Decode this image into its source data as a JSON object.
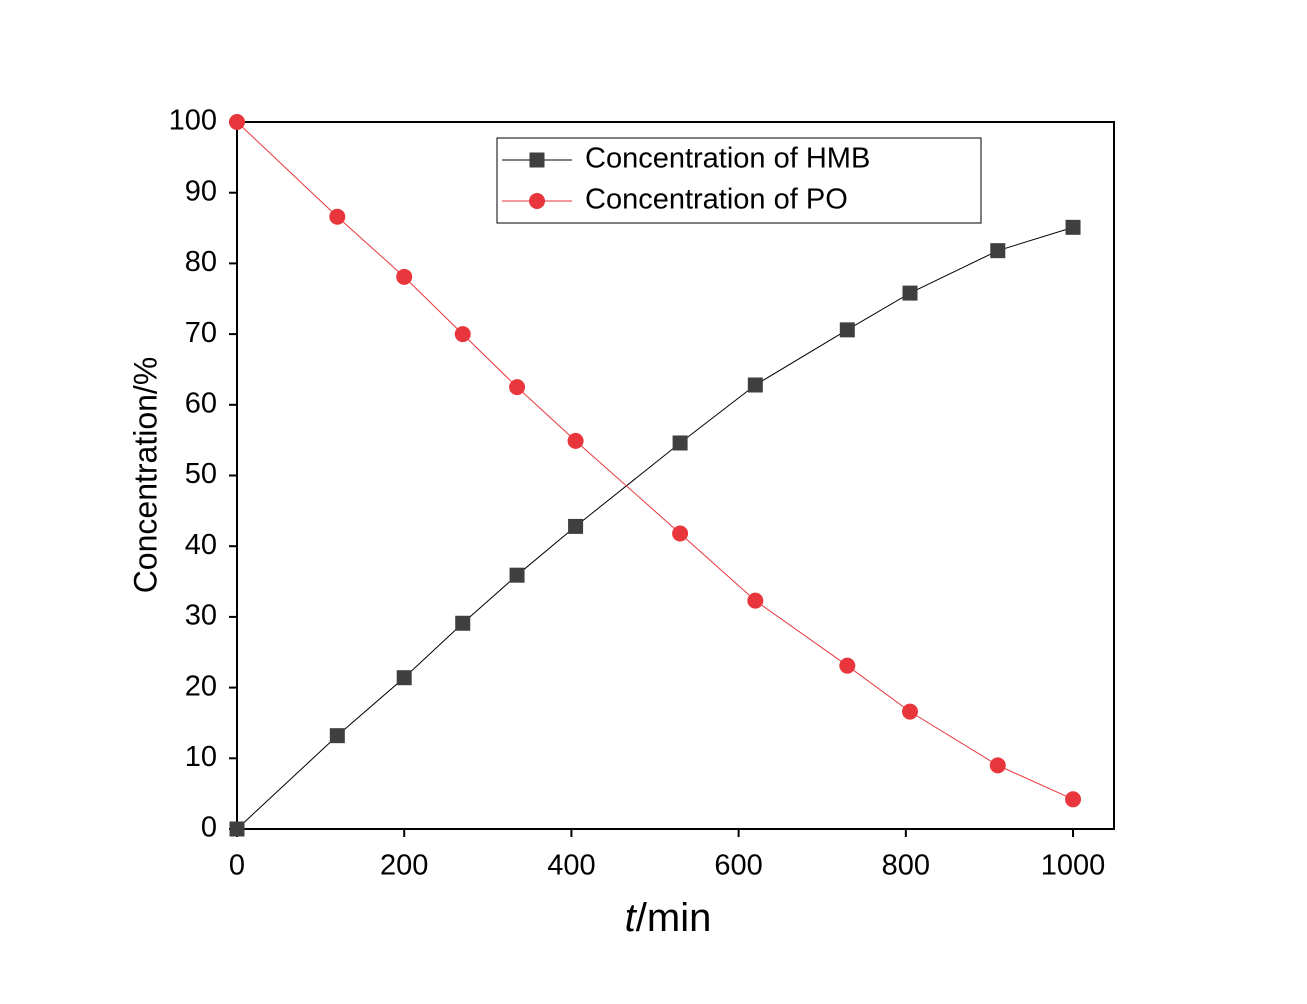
{
  "chart_data": {
    "type": "line",
    "x_label": "t/min",
    "y_label": "Concentration/%",
    "x": [
      0,
      120,
      200,
      270,
      335,
      405,
      530,
      620,
      730,
      805,
      910,
      1000
    ],
    "series": [
      {
        "name": "Concentration of HMB",
        "color": "#3f3f3f",
        "line_color": "#000000",
        "marker": "square",
        "values": [
          0,
          13.2,
          21.4,
          29.1,
          35.9,
          42.8,
          54.6,
          62.8,
          70.6,
          75.8,
          81.8,
          85.1
        ]
      },
      {
        "name": "Concentration of PO",
        "color": "#e8363c",
        "line_color": "#e8363c",
        "marker": "circle",
        "values": [
          100,
          86.6,
          78.1,
          70.0,
          62.5,
          54.9,
          41.8,
          32.3,
          23.1,
          16.6,
          9.0,
          4.2
        ]
      }
    ],
    "xlim": [
      0,
      1049
    ],
    "ylim": [
      0,
      100
    ],
    "xticks": [
      0,
      200,
      400,
      600,
      800,
      1000
    ],
    "yticks": [
      0,
      10,
      20,
      30,
      40,
      50,
      60,
      70,
      80,
      90,
      100
    ],
    "grid": false,
    "legend": "top-center"
  }
}
